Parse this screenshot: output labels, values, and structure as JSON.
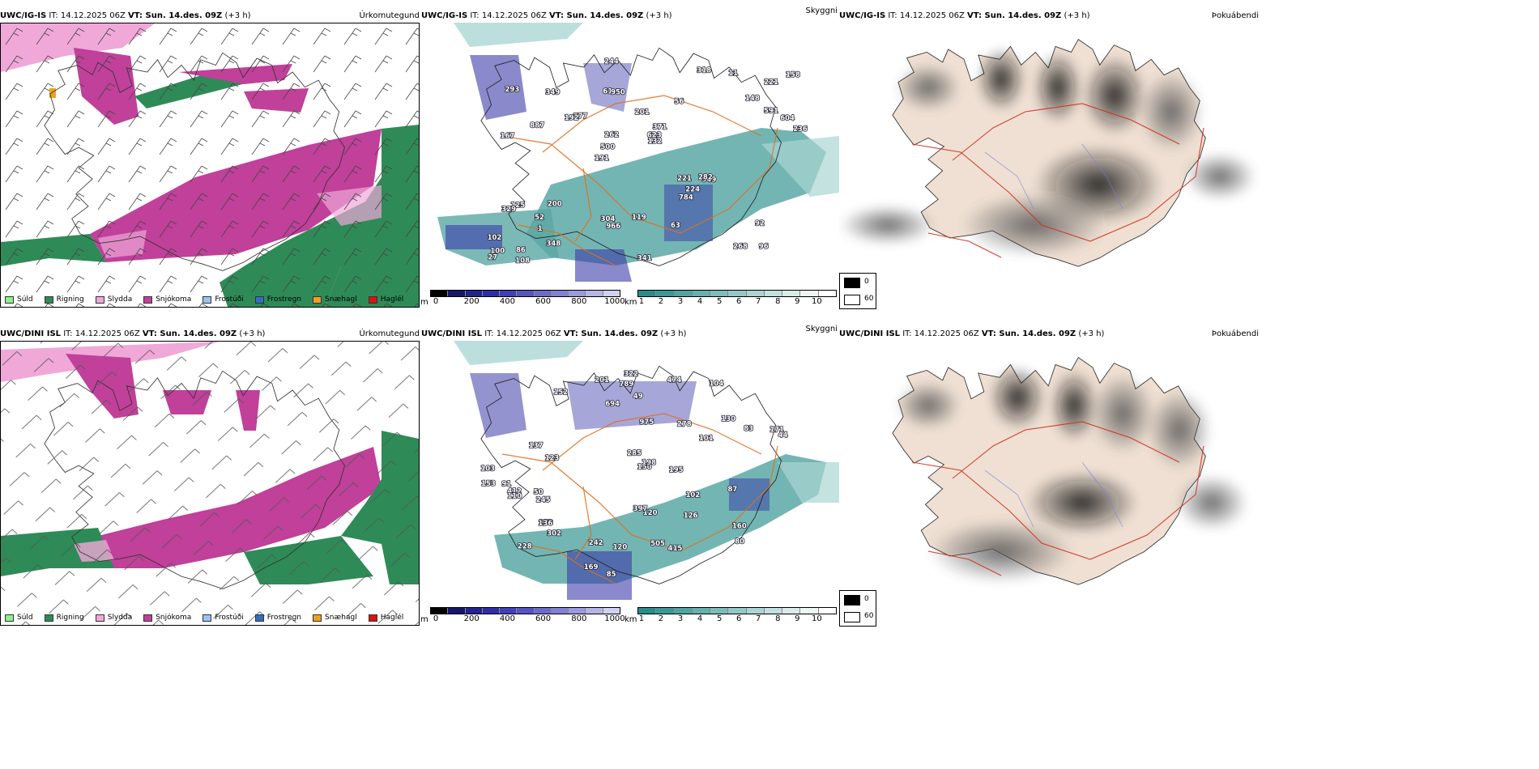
{
  "rows": [
    {
      "model": "UWC/IG-IS",
      "it_label": " IT: 14.12.2025 06Z ",
      "vt_label": "VT: Sun. 14.des. 09Z",
      "step": " (+3 h)",
      "titles": [
        "Úrkomutegund",
        "Skyggni",
        "Þokuábendi"
      ],
      "visibility_labels": [
        "96",
        "167",
        "221",
        "191",
        "56",
        "86",
        "61",
        "201",
        "125",
        "277",
        "102",
        "1",
        "950",
        "371",
        "949",
        "293",
        "244",
        "236",
        "221",
        "591",
        "500",
        "304",
        "262",
        "349",
        "318",
        "200",
        "268",
        "92",
        "282",
        "341",
        "192",
        "887",
        "784",
        "348",
        "604",
        "623",
        "100",
        "966",
        "132",
        "329",
        "148",
        "158",
        "224",
        "63",
        "52",
        "108",
        "27",
        "119",
        "11"
      ]
    },
    {
      "model": "UWC/DINI ISL",
      "it_label": " IT: 14.12.2025 06Z ",
      "vt_label": "VT: Sun. 14.des. 09Z",
      "step": " (+3 h)",
      "titles": [
        "Úrkomutegund",
        "Skyggni",
        "Þokuábendi"
      ],
      "visibility_labels": [
        "228",
        "104",
        "152",
        "130",
        "120",
        "123",
        "245",
        "173",
        "83",
        "101",
        "91",
        "322",
        "126",
        "150",
        "85",
        "201",
        "80",
        "103",
        "136",
        "169",
        "415",
        "789",
        "694",
        "198",
        "285",
        "242",
        "412",
        "474",
        "975",
        "102",
        "137",
        "302",
        "505",
        "397",
        "160",
        "110",
        "171",
        "195",
        "278",
        "87",
        "44",
        "49",
        "120",
        "50",
        "153"
      ]
    }
  ],
  "precip_legend": [
    {
      "label": "Súld",
      "color": "#90ee90"
    },
    {
      "label": "Rigning",
      "color": "#2e8b57"
    },
    {
      "label": "Slydda",
      "color": "#f0a8d8"
    },
    {
      "label": "Snjókoma",
      "color": "#c0409a"
    },
    {
      "label": "Frostúði",
      "color": "#9cc3ef"
    },
    {
      "label": "Frostregn",
      "color": "#3070c0"
    },
    {
      "label": "Snæhagl",
      "color": "#f0a020"
    },
    {
      "label": "Haglél",
      "color": "#e01010"
    }
  ],
  "ceiling_bar": {
    "unit": "m",
    "ticks": [
      "0",
      "200",
      "400",
      "600",
      "800",
      "1000"
    ],
    "colors": [
      "#000000",
      "#16166e",
      "#232390",
      "#2e2ea8",
      "#4040b8",
      "#5555c2",
      "#6b6bcb",
      "#8181d3",
      "#9a9ade",
      "#b4b4e6",
      "#d0d0f0"
    ]
  },
  "vis_bar": {
    "unit": "km",
    "ticks": [
      "1",
      "2",
      "3",
      "4",
      "5",
      "6",
      "7",
      "8",
      "9",
      "10"
    ],
    "colors": [
      "#2a8c8a",
      "#3c9896",
      "#50a4a2",
      "#66b0ae",
      "#7dbcba",
      "#94c8c6",
      "#abd4d2",
      "#c2e0de",
      "#daecea",
      "#eef6f5",
      "#ffffff"
    ]
  },
  "cloud_key": [
    {
      "label": "0",
      "color": "#000000"
    },
    {
      "label": "60",
      "color": "#ffffff"
    }
  ],
  "colors": {
    "land_beige": "#efe0d3",
    "road_orange": "#e07020",
    "road_red": "#d03020",
    "snow_magenta": "#c0409a",
    "rain_green": "#2e8b57",
    "vis_teal": "#5aa8a4",
    "ceiling_blue": "#3a3aa8"
  },
  "icons": [
    "wind-barb-icon",
    "iceland-coastline"
  ]
}
